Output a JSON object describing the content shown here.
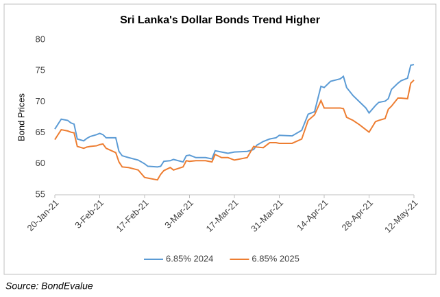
{
  "chart_data": {
    "type": "line",
    "title": "Sri Lanka's Dollar Bonds Trend Higher",
    "y_label": "Bond Prices",
    "source": "Source: BondEvalue",
    "x": [
      "20-Jan-21",
      "22-Jan-21",
      "24-Jan-21",
      "25-Jan-21",
      "26-Jan-21",
      "27-Jan-21",
      "29-Jan-21",
      "30-Jan-21",
      "31-Jan-21",
      "2-Feb-21",
      "3-Feb-21",
      "4-Feb-21",
      "5-Feb-21",
      "8-Feb-21",
      "9-Feb-21",
      "10-Feb-21",
      "12-Feb-21",
      "15-Feb-21",
      "17-Feb-21",
      "18-Feb-21",
      "21-Feb-21",
      "22-Feb-21",
      "23-Feb-21",
      "25-Feb-21",
      "26-Feb-21",
      "1-Mar-21",
      "2-Mar-21",
      "3-Mar-21",
      "5-Mar-21",
      "8-Mar-21",
      "10-Mar-21",
      "11-Mar-21",
      "13-Mar-21",
      "15-Mar-21",
      "17-Mar-21",
      "21-Mar-21",
      "23-Mar-21",
      "24-Mar-21",
      "26-Mar-21",
      "28-Mar-21",
      "30-Mar-21",
      "31-Mar-21",
      "4-Apr-21",
      "7-Apr-21",
      "9-Apr-21",
      "11-Apr-21",
      "13-Apr-21",
      "14-Apr-21",
      "16-Apr-21",
      "19-Apr-21",
      "20-Apr-21",
      "21-Apr-21",
      "23-Apr-21",
      "25-Apr-21",
      "27-Apr-21",
      "28-Apr-21",
      "30-Apr-21",
      "1-May-21",
      "3-May-21",
      "4-May-21",
      "5-May-21",
      "7-May-21",
      "8-May-21",
      "10-May-21",
      "11-May-21",
      "12-May-21"
    ],
    "series": [
      {
        "name": "6.85% 2024",
        "color": "#5b9bd5",
        "values": [
          65.6,
          67.2,
          67.0,
          66.6,
          66.4,
          64.0,
          63.7,
          64.1,
          64.4,
          64.7,
          64.9,
          64.7,
          64.2,
          64.2,
          62.0,
          61.3,
          61.0,
          60.6,
          60.0,
          59.6,
          59.5,
          59.6,
          60.4,
          60.5,
          60.7,
          60.3,
          61.3,
          61.4,
          61.0,
          61.0,
          60.8,
          62.1,
          61.9,
          61.7,
          61.9,
          62.0,
          62.3,
          63.0,
          63.6,
          64.0,
          64.2,
          64.6,
          64.5,
          65.4,
          68.0,
          68.4,
          72.5,
          72.3,
          73.3,
          73.7,
          74.1,
          72.3,
          71.0,
          70.0,
          69.0,
          68.2,
          69.4,
          69.9,
          70.1,
          70.5,
          72.0,
          73.0,
          73.4,
          73.8,
          75.9,
          76.0
        ]
      },
      {
        "name": "6.85% 2025",
        "color": "#ed7d31",
        "values": [
          63.9,
          65.5,
          65.3,
          65.1,
          65.0,
          62.8,
          62.5,
          62.7,
          62.8,
          62.9,
          63.1,
          63.2,
          62.5,
          61.8,
          60.3,
          59.5,
          59.4,
          59.0,
          57.8,
          57.7,
          57.4,
          58.3,
          58.9,
          59.4,
          59.0,
          59.5,
          60.5,
          60.4,
          60.5,
          60.5,
          60.3,
          61.5,
          61.0,
          61.0,
          60.6,
          61.0,
          62.8,
          62.7,
          62.6,
          63.4,
          63.4,
          63.3,
          63.3,
          64.0,
          67.0,
          67.9,
          70.2,
          69.0,
          69.0,
          69.0,
          68.9,
          67.5,
          67.0,
          66.3,
          65.5,
          65.1,
          66.8,
          67.0,
          67.3,
          68.8,
          69.3,
          70.6,
          70.6,
          70.5,
          73.0,
          73.5
        ]
      }
    ],
    "xlim": [
      "20-Jan-21",
      "12-May-21"
    ],
    "xticks": [
      "20-Jan-21",
      "3-Feb-21",
      "17-Feb-21",
      "3-Mar-21",
      "17-Mar-21",
      "31-Mar-21",
      "14-Apr-21",
      "28-Apr-21",
      "12-May-21"
    ],
    "ylim": [
      55,
      80
    ],
    "yticks": [
      55,
      60,
      65,
      70,
      75,
      80
    ],
    "grid": false,
    "legend": "bottom"
  }
}
